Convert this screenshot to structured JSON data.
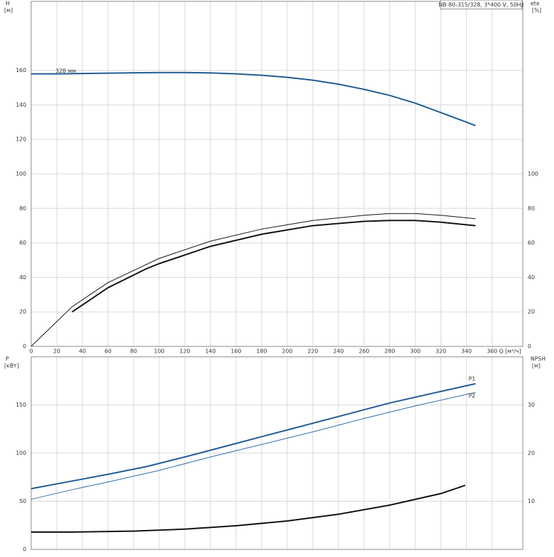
{
  "chart_data": [
    {
      "type": "line",
      "title": "NB 80-315/328, 3*400 V, 50Hz",
      "ylabel": "H",
      "yunit": "[м]",
      "y2label": "eta",
      "y2unit": "[%]",
      "xlabel": "Q [м³/ч]",
      "xlim": [
        0,
        384
      ],
      "xticks": [
        0,
        20,
        40,
        60,
        80,
        100,
        120,
        140,
        160,
        180,
        200,
        220,
        240,
        260,
        280,
        300,
        320,
        340,
        360
      ],
      "ylim": [
        0,
        200
      ],
      "yticks": [
        0,
        20,
        40,
        60,
        80,
        100,
        120,
        140,
        160
      ],
      "y2lim": [
        0,
        200
      ],
      "y2ticks": [
        0,
        20,
        40,
        60,
        80,
        100
      ],
      "grid": true,
      "series": [
        {
          "name": "328 мм",
          "color": "#1f5a96",
          "line_width": 2,
          "label_position": "start",
          "x": [
            0,
            20,
            40,
            60,
            80,
            100,
            120,
            140,
            160,
            180,
            200,
            220,
            240,
            260,
            280,
            300,
            320,
            340,
            347
          ],
          "values": [
            158,
            158,
            158.2,
            158.4,
            158.6,
            158.7,
            158.7,
            158.5,
            158,
            157.2,
            156,
            154.3,
            152,
            149,
            145.5,
            141,
            135.5,
            130,
            128
          ]
        },
        {
          "color": "#111111",
          "line_width": 1,
          "axis": "y2",
          "x": [
            0,
            32,
            60,
            100,
            140,
            180,
            220,
            260,
            280,
            300,
            320,
            347
          ],
          "values": [
            0,
            23,
            37,
            51,
            61,
            68,
            73,
            76,
            77,
            77,
            76,
            74
          ]
        },
        {
          "color": "#111111",
          "line_width": 2,
          "axis": "y2",
          "x": [
            32,
            60,
            90,
            100,
            140,
            180,
            220,
            260,
            280,
            300,
            320,
            347
          ],
          "values": [
            20,
            34,
            45,
            48,
            58,
            65,
            70,
            72.5,
            73,
            73,
            72,
            70
          ]
        }
      ]
    },
    {
      "type": "line",
      "ylabel": "P",
      "yunit": "[кВт]",
      "y2label": "NPSH",
      "y2unit": "[м]",
      "xlim": [
        0,
        384
      ],
      "ylim": [
        0,
        200
      ],
      "yticks": [
        0,
        50,
        100,
        150
      ],
      "y2lim": [
        0,
        40
      ],
      "y2ticks": [
        10,
        20,
        30
      ],
      "grid": true,
      "series": [
        {
          "name": "P1",
          "color": "#1f5a96",
          "line_width": 2,
          "label_position": "end",
          "x": [
            0,
            32,
            60,
            90,
            120,
            160,
            200,
            240,
            280,
            320,
            347
          ],
          "values": [
            63,
            71,
            78,
            86,
            96,
            110,
            124,
            138,
            152,
            164,
            172
          ]
        },
        {
          "name": "P2",
          "color": "#2f6aa6",
          "line_width": 1,
          "label_position": "end",
          "x": [
            0,
            32,
            60,
            100,
            140,
            180,
            220,
            260,
            300,
            347
          ],
          "values": [
            52,
            62,
            70,
            82,
            96,
            109,
            122,
            136,
            149,
            163
          ]
        },
        {
          "color": "#111111",
          "line_width": 2,
          "axis": "y2",
          "x": [
            0,
            32,
            80,
            120,
            160,
            200,
            240,
            280,
            320,
            339
          ],
          "values": [
            3.6,
            3.6,
            3.8,
            4.2,
            4.9,
            5.9,
            7.3,
            9.2,
            11.6,
            13.3
          ]
        }
      ]
    }
  ]
}
